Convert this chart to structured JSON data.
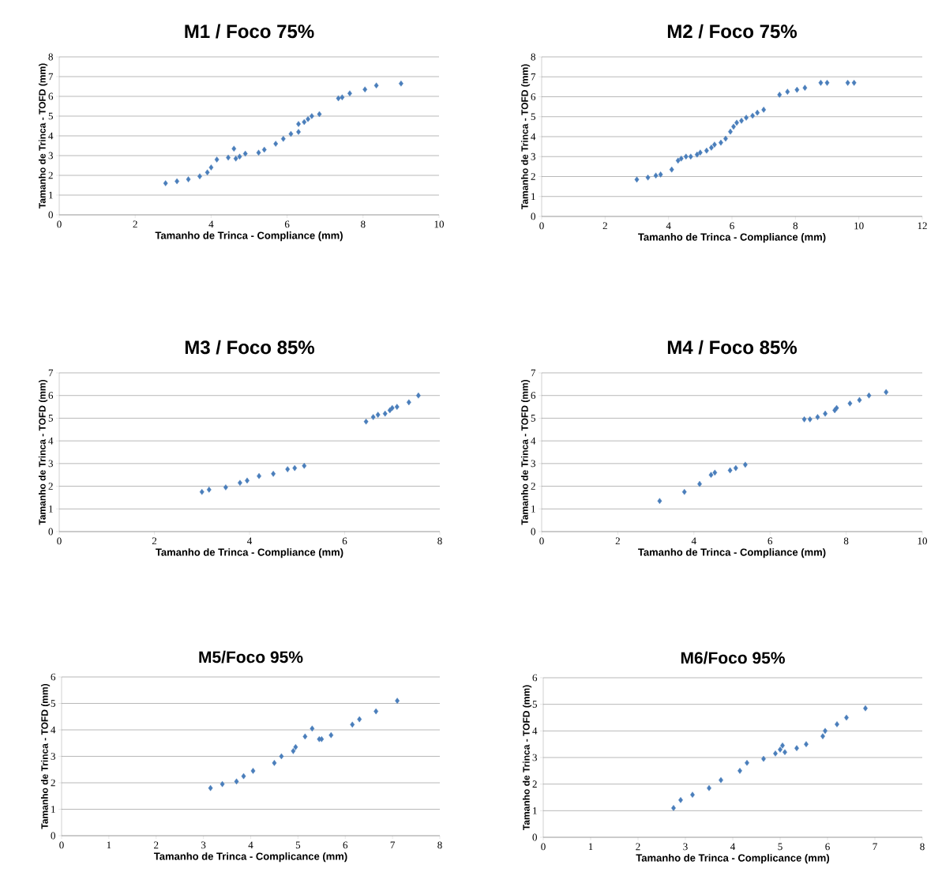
{
  "chart_data": [
    {
      "type": "scatter",
      "title": "M1 / Foco 75%",
      "xlabel": "Tamanho de Trinca  - Compliance (mm)",
      "ylabel": "Tamanho de Trinca - TOFD (mm)",
      "color": "#4a7ebb",
      "marker": "diamond",
      "grid": "y",
      "xlim": [
        0,
        10
      ],
      "ylim": [
        0,
        8
      ],
      "xticks": [
        0,
        2,
        4,
        6,
        8,
        10
      ],
      "yticks": [
        0,
        1,
        2,
        3,
        4,
        5,
        6,
        7,
        8
      ],
      "x": [
        2.8,
        3.1,
        3.4,
        3.7,
        3.9,
        4.0,
        4.15,
        4.45,
        4.6,
        4.65,
        4.75,
        4.9,
        5.25,
        5.4,
        5.7,
        5.9,
        6.1,
        6.3,
        6.3,
        6.45,
        6.55,
        6.65,
        6.85,
        7.35,
        7.45,
        7.65,
        8.05,
        8.35,
        9.0
      ],
      "values": [
        1.6,
        1.7,
        1.8,
        1.95,
        2.15,
        2.4,
        2.8,
        2.9,
        3.35,
        2.85,
        2.95,
        3.1,
        3.15,
        3.3,
        3.6,
        3.85,
        4.1,
        4.2,
        4.6,
        4.7,
        4.85,
        5.0,
        5.1,
        5.9,
        5.95,
        6.15,
        6.35,
        6.55,
        6.65
      ]
    },
    {
      "type": "scatter",
      "title": "M2 / Foco 75%",
      "xlabel": "Tamanho de Trinca  - Compliance (mm)",
      "ylabel": "Tamanho de Trinca - TOFD (mm)",
      "color": "#4a7ebb",
      "marker": "diamond",
      "grid": "y",
      "xlim": [
        0,
        12
      ],
      "ylim": [
        0,
        8
      ],
      "xticks": [
        0,
        2,
        4,
        6,
        8,
        10,
        12
      ],
      "yticks": [
        0,
        1,
        2,
        3,
        4,
        5,
        6,
        7,
        8
      ],
      "x": [
        3.0,
        3.35,
        3.6,
        3.75,
        4.1,
        4.3,
        4.4,
        4.55,
        4.7,
        4.9,
        5.0,
        5.2,
        5.35,
        5.45,
        5.65,
        5.8,
        5.95,
        6.05,
        6.15,
        6.3,
        6.45,
        6.65,
        6.8,
        7.0,
        7.5,
        7.75,
        8.05,
        8.3,
        8.8,
        9.0,
        9.65,
        9.85
      ],
      "values": [
        1.85,
        1.95,
        2.05,
        2.1,
        2.35,
        2.8,
        2.9,
        3.0,
        3.0,
        3.1,
        3.2,
        3.3,
        3.45,
        3.6,
        3.7,
        3.9,
        4.25,
        4.5,
        4.7,
        4.8,
        4.95,
        5.05,
        5.2,
        5.35,
        6.1,
        6.25,
        6.35,
        6.45,
        6.7,
        6.7,
        6.7,
        6.7
      ]
    },
    {
      "type": "scatter",
      "title": "M3 / Foco 85%",
      "xlabel": "Tamanho de Trinca  - Compliance (mm)",
      "ylabel": "Tamanho de Trinca - TOFD (mm)",
      "color": "#4a7ebb",
      "marker": "diamond",
      "grid": "y",
      "xlim": [
        0,
        8
      ],
      "ylim": [
        0,
        7
      ],
      "xticks": [
        0,
        2,
        4,
        6,
        8
      ],
      "yticks": [
        0,
        1,
        2,
        3,
        4,
        5,
        6,
        7
      ],
      "x": [
        3.0,
        3.15,
        3.5,
        3.8,
        3.95,
        4.2,
        4.5,
        4.8,
        4.95,
        5.15,
        6.45,
        6.6,
        6.7,
        6.85,
        6.95,
        7.0,
        7.1,
        7.35,
        7.55
      ],
      "values": [
        1.75,
        1.85,
        1.95,
        2.15,
        2.25,
        2.45,
        2.55,
        2.75,
        2.8,
        2.9,
        4.85,
        5.05,
        5.15,
        5.2,
        5.35,
        5.45,
        5.5,
        5.7,
        6.0
      ]
    },
    {
      "type": "scatter",
      "title": "M4 / Foco 85%",
      "xlabel": "Tamanho de Trinca  - Compliance (mm)",
      "ylabel": "Tamanho de Trinca - TOFD (mm)",
      "color": "#4a7ebb",
      "marker": "diamond",
      "grid": "y",
      "xlim": [
        0,
        10
      ],
      "ylim": [
        0,
        7
      ],
      "xticks": [
        0,
        2,
        4,
        6,
        8,
        10
      ],
      "yticks": [
        0,
        1,
        2,
        3,
        4,
        5,
        6,
        7
      ],
      "x": [
        3.1,
        3.75,
        4.15,
        4.45,
        4.55,
        4.95,
        5.1,
        5.35,
        6.9,
        7.05,
        7.25,
        7.45,
        7.7,
        7.75,
        8.1,
        8.35,
        8.6,
        9.05
      ],
      "values": [
        1.35,
        1.75,
        2.1,
        2.5,
        2.6,
        2.7,
        2.8,
        2.95,
        4.95,
        4.95,
        5.05,
        5.2,
        5.35,
        5.45,
        5.65,
        5.8,
        6.0,
        6.15
      ]
    },
    {
      "type": "scatter",
      "title": "M5/Foco 95%",
      "xlabel": "Tamanho de Trinca  - Complicance  (mm)",
      "ylabel": "Tamanho de Trinca - TOFD (mm)",
      "color": "#4a7ebb",
      "marker": "diamond",
      "grid": "y",
      "xlim": [
        0,
        8
      ],
      "ylim": [
        0,
        6
      ],
      "xticks": [
        0,
        1,
        2,
        3,
        4,
        5,
        6,
        7,
        8
      ],
      "yticks": [
        0,
        1,
        2,
        3,
        4,
        5,
        6
      ],
      "x": [
        3.15,
        3.4,
        3.7,
        3.85,
        4.05,
        4.5,
        4.65,
        4.9,
        4.95,
        5.15,
        5.3,
        5.45,
        5.5,
        5.7,
        6.15,
        6.3,
        6.65,
        7.1
      ],
      "values": [
        1.8,
        1.95,
        2.05,
        2.25,
        2.45,
        2.75,
        3.0,
        3.2,
        3.35,
        3.75,
        4.05,
        3.65,
        3.65,
        3.8,
        4.2,
        4.4,
        4.7,
        5.1
      ]
    },
    {
      "type": "scatter",
      "title": "M6/Foco 95%",
      "xlabel": "Tamanho de Trinca  - Complicance  (mm)",
      "ylabel": "Tamanho de Trinca - TOFD (mm)",
      "color": "#4a7ebb",
      "marker": "diamond",
      "grid": "y",
      "xlim": [
        0,
        8
      ],
      "ylim": [
        0,
        6
      ],
      "xticks": [
        0,
        1,
        2,
        3,
        4,
        5,
        6,
        7,
        8
      ],
      "yticks": [
        0,
        1,
        2,
        3,
        4,
        5,
        6
      ],
      "x": [
        2.75,
        2.9,
        3.15,
        3.5,
        3.75,
        4.15,
        4.3,
        4.65,
        4.9,
        5.0,
        5.05,
        5.1,
        5.35,
        5.55,
        5.9,
        5.95,
        6.2,
        6.4,
        6.8
      ],
      "values": [
        1.1,
        1.4,
        1.6,
        1.85,
        2.15,
        2.5,
        2.8,
        2.95,
        3.15,
        3.3,
        3.45,
        3.2,
        3.35,
        3.5,
        3.8,
        4.0,
        4.25,
        4.5,
        4.85
      ]
    }
  ]
}
